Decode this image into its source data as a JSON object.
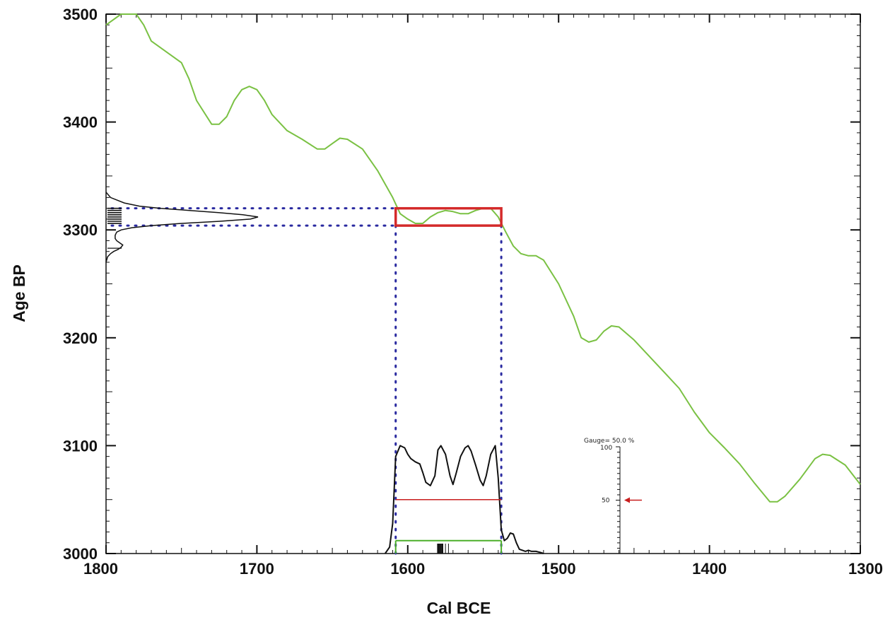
{
  "chart_data": {
    "type": "line",
    "title": "",
    "xlabel": "Cal BCE",
    "ylabel": "Age BP",
    "xlim": [
      1800,
      1300
    ],
    "ylim": [
      3000,
      3500
    ],
    "x_ticks": [
      1800,
      1700,
      1600,
      1500,
      1400,
      1300
    ],
    "y_ticks": [
      3000,
      3100,
      3200,
      3300,
      3400,
      3500
    ],
    "grid": false,
    "colors": {
      "calibration_curve": "#7ac143",
      "range_box": "#d42a2a",
      "dotted_guides": "#2a2aa0",
      "distribution": "#111111",
      "sigma1_line": "#c81e1e",
      "sigma2_line": "#4caf2a"
    },
    "calibration_curve": {
      "x": [
        1800,
        1790,
        1780,
        1775,
        1770,
        1760,
        1750,
        1745,
        1740,
        1730,
        1725,
        1720,
        1715,
        1710,
        1705,
        1700,
        1695,
        1690,
        1680,
        1670,
        1660,
        1655,
        1650,
        1645,
        1640,
        1630,
        1620,
        1610,
        1605,
        1600,
        1595,
        1590,
        1585,
        1580,
        1575,
        1570,
        1565,
        1560,
        1555,
        1550,
        1545,
        1540,
        1535,
        1530,
        1525,
        1520,
        1515,
        1510,
        1500,
        1490,
        1485,
        1480,
        1475,
        1470,
        1465,
        1460,
        1450,
        1440,
        1430,
        1420,
        1410,
        1400,
        1390,
        1380,
        1370,
        1360,
        1355,
        1350,
        1340,
        1330,
        1325,
        1320,
        1310,
        1300
      ],
      "y": [
        3490,
        3500,
        3500,
        3490,
        3475,
        3465,
        3455,
        3440,
        3420,
        3398,
        3398,
        3405,
        3420,
        3430,
        3433,
        3430,
        3420,
        3407,
        3392,
        3384,
        3375,
        3375,
        3380,
        3385,
        3384,
        3375,
        3355,
        3330,
        3315,
        3310,
        3306,
        3306,
        3312,
        3316,
        3318,
        3317,
        3315,
        3315,
        3318,
        3320,
        3320,
        3312,
        3298,
        3285,
        3278,
        3276,
        3276,
        3272,
        3250,
        3220,
        3200,
        3196,
        3198,
        3206,
        3211,
        3210,
        3198,
        3183,
        3168,
        3153,
        3131,
        3112,
        3098,
        3083,
        3065,
        3048,
        3048,
        3053,
        3069,
        3088,
        3092,
        3091,
        3082,
        3064
      ]
    },
    "measured_age_distribution": {
      "y": [
        3335,
        3330,
        3325,
        3322,
        3320,
        3318,
        3316,
        3314,
        3312,
        3310,
        3308,
        3306,
        3304,
        3302,
        3300,
        3298,
        3295,
        3292,
        3290,
        3288,
        3286,
        3284,
        3282,
        3280,
        3278,
        3275,
        3270
      ],
      "density": [
        0.0,
        0.03,
        0.12,
        0.22,
        0.36,
        0.55,
        0.74,
        0.9,
        1.0,
        0.95,
        0.75,
        0.5,
        0.3,
        0.17,
        0.1,
        0.07,
        0.06,
        0.06,
        0.07,
        0.09,
        0.11,
        0.1,
        0.08,
        0.05,
        0.03,
        0.01,
        0.0
      ]
    },
    "calibrated_distribution": {
      "x": [
        1615,
        1612,
        1610,
        1608,
        1605,
        1602,
        1600,
        1598,
        1595,
        1592,
        1590,
        1588,
        1585,
        1582,
        1580,
        1578,
        1575,
        1572,
        1570,
        1568,
        1565,
        1562,
        1560,
        1558,
        1555,
        1552,
        1550,
        1548,
        1545,
        1542,
        1540,
        1538,
        1536,
        1534,
        1532,
        1530,
        1528,
        1526,
        1524,
        1522,
        1520,
        1518,
        1515,
        1512,
        1510
      ],
      "y": [
        0,
        6,
        28,
        90,
        100,
        98,
        92,
        88,
        85,
        83,
        75,
        66,
        63,
        72,
        96,
        100,
        92,
        72,
        64,
        74,
        90,
        98,
        100,
        95,
        82,
        68,
        63,
        72,
        92,
        100,
        70,
        22,
        12,
        14,
        19,
        18,
        10,
        4,
        3,
        2,
        3,
        2,
        2,
        1,
        0
      ]
    },
    "measured_range": {
      "age_low": 3304,
      "age_high": 3320
    },
    "calibrated_range": {
      "cal_from": 1608,
      "cal_to": 1538
    },
    "sigma1_range": {
      "cal_from": 1608,
      "cal_to": 1538
    },
    "sigma2_range": {
      "cal_from": 1608,
      "cal_to": 1538
    },
    "gauge": {
      "title": "Gauge= 50.0 %",
      "max_label": "100",
      "mid_label": "50",
      "value": 50
    }
  }
}
